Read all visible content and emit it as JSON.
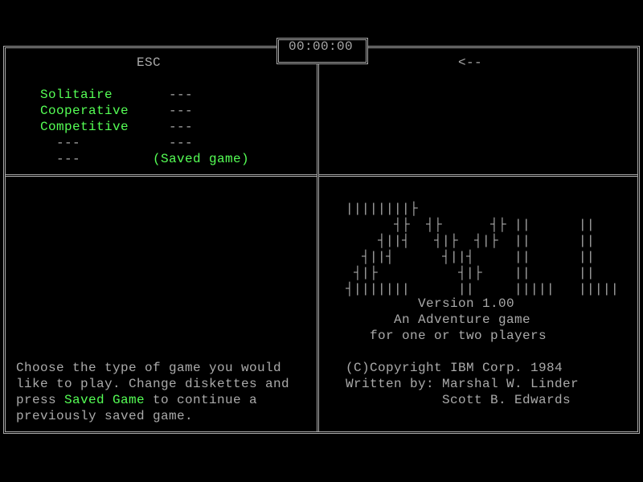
{
  "timer": "00:00:00",
  "left_panel": {
    "header": "ESC",
    "menu": [
      {
        "label": "Solitaire",
        "value": "---"
      },
      {
        "label": "Cooperative",
        "value": "---"
      },
      {
        "label": "Competitive",
        "value": "---"
      },
      {
        "label": "---",
        "value": "---"
      },
      {
        "label": "---",
        "value": "(Saved game)"
      }
    ],
    "help": {
      "line1": "Choose the type of game you would",
      "line2": "like to play. Change diskettes and",
      "line3_pre": "press ",
      "line3_hl": "Saved Game",
      "line3_post": " to continue a",
      "line4": "previously saved game."
    }
  },
  "right_panel": {
    "header": "<--",
    "logo_text": "ZYLL",
    "version": "Version 1.00",
    "subtitle1": "An Adventure game",
    "subtitle2": "for one or two players",
    "copyright": "(C)Copyright IBM Corp. 1984",
    "written_by": "Written by: Marshal W. Linder",
    "author2": "Scott B. Edwards"
  },
  "colors": {
    "text": "#aaaaaa",
    "highlight": "#55ff55",
    "background": "#000000"
  }
}
